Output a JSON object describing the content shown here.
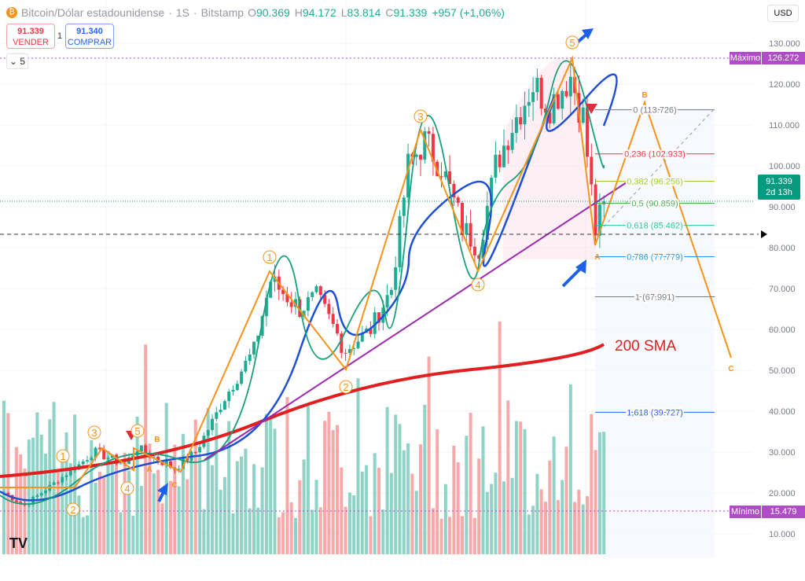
{
  "header": {
    "symbol": "Bitcoin/Dólar estadounidense",
    "interval": "1S",
    "exchange": "Bitstamp",
    "open_label": "O",
    "open": "90.369",
    "high_label": "H",
    "high": "94.172",
    "low_label": "L",
    "low": "83.814",
    "close_label": "C",
    "close": "91.339",
    "change": "+957 (+1,06%)"
  },
  "trade": {
    "sell_price": "91.339",
    "sell_label": "VENDER",
    "lot": "1",
    "buy_price": "91.340",
    "buy_label": "COMPRAR"
  },
  "indicators_count": "5",
  "currency": "USD",
  "price_labels": {
    "max_label": "Máximo",
    "max_value": "126.272",
    "min_label": "Mínimo",
    "min_value": "15.479",
    "last_price": "91.339",
    "countdown": "2d 13h"
  },
  "colors": {
    "up": "#22ab94",
    "down": "#f23645",
    "sma200": "#e02020",
    "ema_blue": "#1e4fd8",
    "ema_green": "#18a07a",
    "wave": "#f7931a",
    "trend": "#9c27b0"
  },
  "annotations": {
    "sma_label": "200 SMA",
    "waves": [
      "1",
      "2",
      "3",
      "4",
      "5",
      "1",
      "2",
      "3",
      "4",
      "5"
    ],
    "abc": [
      "A",
      "B",
      "C",
      "A",
      "B",
      "C"
    ]
  },
  "fib_levels": [
    {
      "label": "0 (113.726)",
      "price": 113.726,
      "color": "#787b86"
    },
    {
      "label": "0,236 (102.933)",
      "price": 102.933,
      "color": "#f23645"
    },
    {
      "label": "0,382 (96.256)",
      "price": 96.256,
      "color": "#9ccc28"
    },
    {
      "label": "0,5 (90.859)",
      "price": 90.859,
      "color": "#4caf50"
    },
    {
      "label": "0,618 (85.462)",
      "price": 85.462,
      "color": "#26c6a0"
    },
    {
      "label": "0,786 (77.779)",
      "price": 77.779,
      "color": "#2196f3"
    },
    {
      "label": "1 (67.991)",
      "price": 67.991,
      "color": "#787b86"
    },
    {
      "label": "1,618 (39.727)",
      "price": 39.727,
      "color": "#2962ff"
    }
  ],
  "chart_data": {
    "type": "candlestick",
    "title": "Bitcoin/Dólar estadounidense · 1S · Bitstamp",
    "y_axis": {
      "range": [
        10000,
        130000
      ],
      "ticks": [
        "130.000",
        "120.000",
        "110.000",
        "100.000",
        "90.000",
        "80.000",
        "70.000",
        "60.000",
        "50.000",
        "40.000",
        "30.000",
        "20.000",
        "10.000"
      ]
    },
    "price_path_keypoints": [
      [
        0,
        20
      ],
      [
        5,
        17
      ],
      [
        22,
        30
      ],
      [
        29,
        27
      ],
      [
        32,
        31
      ],
      [
        41,
        26
      ],
      [
        46,
        30
      ],
      [
        54,
        45
      ],
      [
        60,
        55
      ],
      [
        64,
        72
      ],
      [
        71,
        65
      ],
      [
        75,
        68
      ],
      [
        82,
        55
      ],
      [
        88,
        60
      ],
      [
        93,
        70
      ],
      [
        97,
        100
      ],
      [
        101,
        106
      ],
      [
        105,
        100
      ],
      [
        110,
        85
      ],
      [
        114,
        80
      ],
      [
        118,
        100
      ],
      [
        122,
        110
      ],
      [
        127,
        120
      ],
      [
        131,
        115
      ],
      [
        136,
        122
      ],
      [
        139,
        112
      ],
      [
        142,
        84
      ],
      [
        144,
        91.339
      ]
    ]
  }
}
